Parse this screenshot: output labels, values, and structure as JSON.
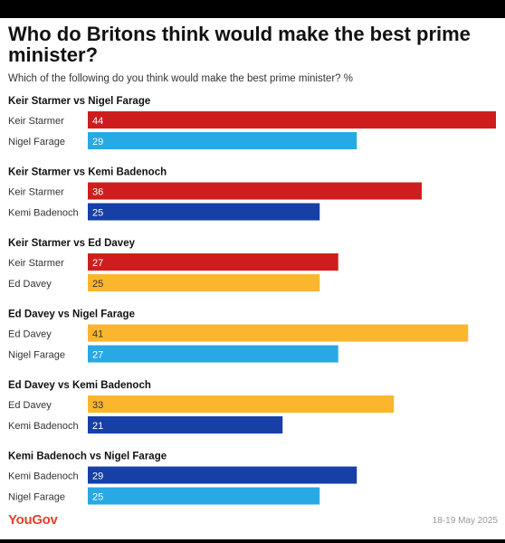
{
  "title": "Who do Britons think would make the best prime minister?",
  "subtitle": "Which of the following do you think would make the best prime minister? %",
  "brand": "YouGov",
  "date": "18-19 May 2025",
  "colors": {
    "Keir Starmer": "#cf1d1d",
    "Nigel Farage": "#27a9e6",
    "Kemi Badenoch": "#1640a6",
    "Ed Davey": "#fbb62d"
  },
  "chart_data": {
    "type": "bar",
    "orientation": "horizontal",
    "xlim": [
      0,
      44
    ],
    "grid": false,
    "groups": [
      {
        "title": "Keir Starmer vs Nigel Farage",
        "bars": [
          {
            "name": "Keir Starmer",
            "value": 44
          },
          {
            "name": "Nigel Farage",
            "value": 29
          }
        ]
      },
      {
        "title": "Keir Starmer vs Kemi Badenoch",
        "bars": [
          {
            "name": "Keir Starmer",
            "value": 36
          },
          {
            "name": "Kemi Badenoch",
            "value": 25
          }
        ]
      },
      {
        "title": "Keir Starmer vs Ed Davey",
        "bars": [
          {
            "name": "Keir Starmer",
            "value": 27
          },
          {
            "name": "Ed Davey",
            "value": 25
          }
        ]
      },
      {
        "title": "Ed Davey vs Nigel Farage",
        "bars": [
          {
            "name": "Ed Davey",
            "value": 41
          },
          {
            "name": "Nigel Farage",
            "value": 27
          }
        ]
      },
      {
        "title": "Ed Davey vs Kemi Badenoch",
        "bars": [
          {
            "name": "Ed Davey",
            "value": 33
          },
          {
            "name": "Kemi Badenoch",
            "value": 21
          }
        ]
      },
      {
        "title": "Kemi Badenoch vs Nigel Farage",
        "bars": [
          {
            "name": "Kemi Badenoch",
            "value": 29
          },
          {
            "name": "Nigel Farage",
            "value": 25
          }
        ]
      }
    ]
  }
}
